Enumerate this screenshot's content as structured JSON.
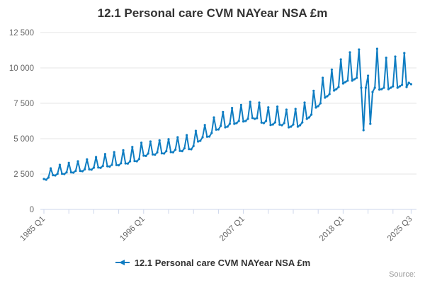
{
  "title": "12.1 Personal care CVM NAYear NSA £m",
  "source_label": "Source:",
  "legend": {
    "label": "12.1 Personal care CVM NAYear NSA £m"
  },
  "colors": {
    "line": "#0f7dc2",
    "grid": "#e6e6e6",
    "axis": "#ccd6eb",
    "tick_label": "#666666",
    "title_text": "#333333",
    "legend_text": "#333333",
    "source_text": "#999999"
  },
  "chart_data": {
    "type": "line",
    "title": "12.1 Personal care CVM NAYear NSA £m",
    "unit": "£m",
    "frequency": "quarterly",
    "x_start": "1985 Q1",
    "x_end": "2025 Q3",
    "ylim": [
      0,
      12500
    ],
    "grid": "horizontal",
    "legend_position": "bottom",
    "yticks": [
      {
        "value": 0,
        "label": "0"
      },
      {
        "value": 2500,
        "label": "2 500"
      },
      {
        "value": 5000,
        "label": "5 000"
      },
      {
        "value": 7500,
        "label": "7 500"
      },
      {
        "value": 10000,
        "label": "10 000"
      },
      {
        "value": 12500,
        "label": "12 500"
      }
    ],
    "xticks": [
      {
        "q": 0,
        "label": "1985 Q1"
      },
      {
        "q": 44,
        "label": "1996 Q1"
      },
      {
        "q": 88,
        "label": "2007 Q1"
      },
      {
        "q": 132,
        "label": "2018 Q1"
      },
      {
        "q": 162,
        "label": "2025 Q3"
      }
    ],
    "minor_tick_step_quarters": 11,
    "series": [
      {
        "name": "12.1 Personal care CVM NAYear NSA £m",
        "start": "1985 Q1",
        "values": [
          2150,
          2100,
          2250,
          2900,
          2420,
          2400,
          2520,
          3150,
          2520,
          2500,
          2620,
          3290,
          2620,
          2600,
          2720,
          3400,
          2720,
          2700,
          2830,
          3540,
          2830,
          2810,
          2950,
          3700,
          2965,
          2940,
          3070,
          3915,
          3050,
          3030,
          3150,
          4050,
          3135,
          3120,
          3260,
          4185,
          3250,
          3240,
          3400,
          4415,
          3420,
          3400,
          3560,
          4715,
          3800,
          3780,
          3950,
          4800,
          3885,
          3870,
          4030,
          4885,
          3965,
          3950,
          4120,
          4965,
          4050,
          4040,
          4220,
          5100,
          4135,
          4120,
          4320,
          5250,
          4265,
          4250,
          4480,
          5550,
          4800,
          4850,
          5100,
          5965,
          5135,
          5150,
          5400,
          6500,
          5635,
          5650,
          5900,
          6885,
          5800,
          5850,
          6050,
          7170,
          6050,
          6100,
          6250,
          7385,
          6215,
          6250,
          6400,
          7600,
          6465,
          6400,
          6450,
          7550,
          6135,
          6100,
          6250,
          7215,
          5965,
          6000,
          6150,
          7265,
          5990,
          5950,
          6100,
          7050,
          5800,
          5850,
          6000,
          7100,
          5850,
          5950,
          6150,
          7550,
          6400,
          6500,
          6700,
          8385,
          7200,
          7300,
          7500,
          9300,
          7900,
          8000,
          8150,
          9885,
          8400,
          8500,
          8650,
          10600,
          8900,
          9000,
          9100,
          11100,
          9100,
          9200,
          9300,
          11300,
          8600,
          5600,
          8600,
          9450,
          6050,
          8300,
          8600,
          11350,
          8470,
          8500,
          8600,
          10720,
          8500,
          8600,
          8700,
          10800,
          8600,
          8700,
          8800,
          11050,
          8650,
          8950,
          8850
        ]
      }
    ]
  }
}
